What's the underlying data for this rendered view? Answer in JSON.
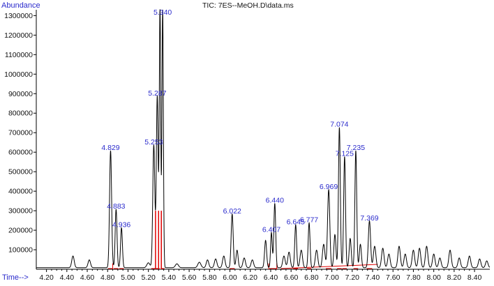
{
  "chart_data": {
    "type": "line",
    "title": "TIC: 7ES--MeOH.D\\data.ms",
    "ylabel": "Abundance",
    "xlabel": "Time-->",
    "xlim": [
      4.1,
      8.55
    ],
    "ylim": [
      0,
      1330000
    ],
    "x_ticks": [
      "4.20",
      "4.40",
      "4.60",
      "4.80",
      "5.00",
      "5.20",
      "5.40",
      "5.60",
      "5.80",
      "6.00",
      "6.20",
      "6.40",
      "6.60",
      "6.80",
      "7.00",
      "7.20",
      "7.40",
      "7.60",
      "7.80",
      "8.00",
      "8.20",
      "8.40"
    ],
    "y_ticks": [
      "100000",
      "200000",
      "300000",
      "400000",
      "500000",
      "600000",
      "700000",
      "800000",
      "900000",
      "1000000",
      "1100000",
      "1200000",
      "1300000"
    ],
    "baseline": 8000,
    "peaks": [
      {
        "x": 4.46,
        "h": 60000,
        "w": 0.012
      },
      {
        "x": 4.62,
        "h": 40000,
        "w": 0.012
      },
      {
        "x": 4.829,
        "h": 600000,
        "w": 0.01,
        "label": "4.829"
      },
      {
        "x": 4.883,
        "h": 300000,
        "w": 0.009,
        "label": "4.883"
      },
      {
        "x": 4.936,
        "h": 205000,
        "w": 0.009,
        "label": "4.936"
      },
      {
        "x": 5.2,
        "h": 25000,
        "w": 0.015
      },
      {
        "x": 5.253,
        "h": 630000,
        "w": 0.01,
        "label": "5.253"
      },
      {
        "x": 5.287,
        "h": 880000,
        "w": 0.009,
        "label": "5.287"
      },
      {
        "x": 5.314,
        "h": 1330000,
        "w": 0.007
      },
      {
        "x": 5.34,
        "h": 1330000,
        "w": 0.007,
        "label": "5.340"
      },
      {
        "x": 5.48,
        "h": 20000,
        "w": 0.015
      },
      {
        "x": 5.7,
        "h": 28000,
        "w": 0.015
      },
      {
        "x": 5.78,
        "h": 40000,
        "w": 0.012
      },
      {
        "x": 5.86,
        "h": 45000,
        "w": 0.012
      },
      {
        "x": 5.94,
        "h": 60000,
        "w": 0.012
      },
      {
        "x": 6.022,
        "h": 275000,
        "w": 0.01,
        "label": "6.022"
      },
      {
        "x": 6.07,
        "h": 90000,
        "w": 0.01
      },
      {
        "x": 6.14,
        "h": 50000,
        "w": 0.012
      },
      {
        "x": 6.22,
        "h": 40000,
        "w": 0.012
      },
      {
        "x": 6.35,
        "h": 140000,
        "w": 0.01
      },
      {
        "x": 6.407,
        "h": 180000,
        "w": 0.008,
        "label": "6.407"
      },
      {
        "x": 6.44,
        "h": 330000,
        "w": 0.009,
        "label": "6.440"
      },
      {
        "x": 6.53,
        "h": 60000,
        "w": 0.012
      },
      {
        "x": 6.58,
        "h": 80000,
        "w": 0.012
      },
      {
        "x": 6.645,
        "h": 220000,
        "w": 0.009,
        "label": "6.645"
      },
      {
        "x": 6.7,
        "h": 90000,
        "w": 0.012
      },
      {
        "x": 6.777,
        "h": 230000,
        "w": 0.009,
        "label": "6.777"
      },
      {
        "x": 6.85,
        "h": 90000,
        "w": 0.012
      },
      {
        "x": 6.92,
        "h": 120000,
        "w": 0.012
      },
      {
        "x": 6.969,
        "h": 400000,
        "w": 0.011,
        "label": "6.969"
      },
      {
        "x": 7.03,
        "h": 170000,
        "w": 0.01
      },
      {
        "x": 7.074,
        "h": 720000,
        "w": 0.009,
        "label": "7.074"
      },
      {
        "x": 7.125,
        "h": 570000,
        "w": 0.009,
        "label": "7.125"
      },
      {
        "x": 7.18,
        "h": 150000,
        "w": 0.01
      },
      {
        "x": 7.235,
        "h": 600000,
        "w": 0.009,
        "label": "7.235"
      },
      {
        "x": 7.28,
        "h": 120000,
        "w": 0.01
      },
      {
        "x": 7.369,
        "h": 240000,
        "w": 0.011,
        "label": "7.369"
      },
      {
        "x": 7.42,
        "h": 110000,
        "w": 0.012
      },
      {
        "x": 7.5,
        "h": 100000,
        "w": 0.012
      },
      {
        "x": 7.56,
        "h": 70000,
        "w": 0.012
      },
      {
        "x": 7.66,
        "h": 110000,
        "w": 0.012
      },
      {
        "x": 7.72,
        "h": 70000,
        "w": 0.012
      },
      {
        "x": 7.8,
        "h": 90000,
        "w": 0.012
      },
      {
        "x": 7.86,
        "h": 100000,
        "w": 0.012
      },
      {
        "x": 7.93,
        "h": 110000,
        "w": 0.012
      },
      {
        "x": 8.0,
        "h": 70000,
        "w": 0.012
      },
      {
        "x": 8.06,
        "h": 50000,
        "w": 0.012
      },
      {
        "x": 8.16,
        "h": 90000,
        "w": 0.012
      },
      {
        "x": 8.25,
        "h": 50000,
        "w": 0.012
      },
      {
        "x": 8.35,
        "h": 60000,
        "w": 0.012
      },
      {
        "x": 8.45,
        "h": 45000,
        "w": 0.012
      },
      {
        "x": 8.52,
        "h": 35000,
        "w": 0.012
      }
    ],
    "integration_color": "#e00000",
    "line_color": "#000000",
    "label_color": "#2a2acc"
  }
}
